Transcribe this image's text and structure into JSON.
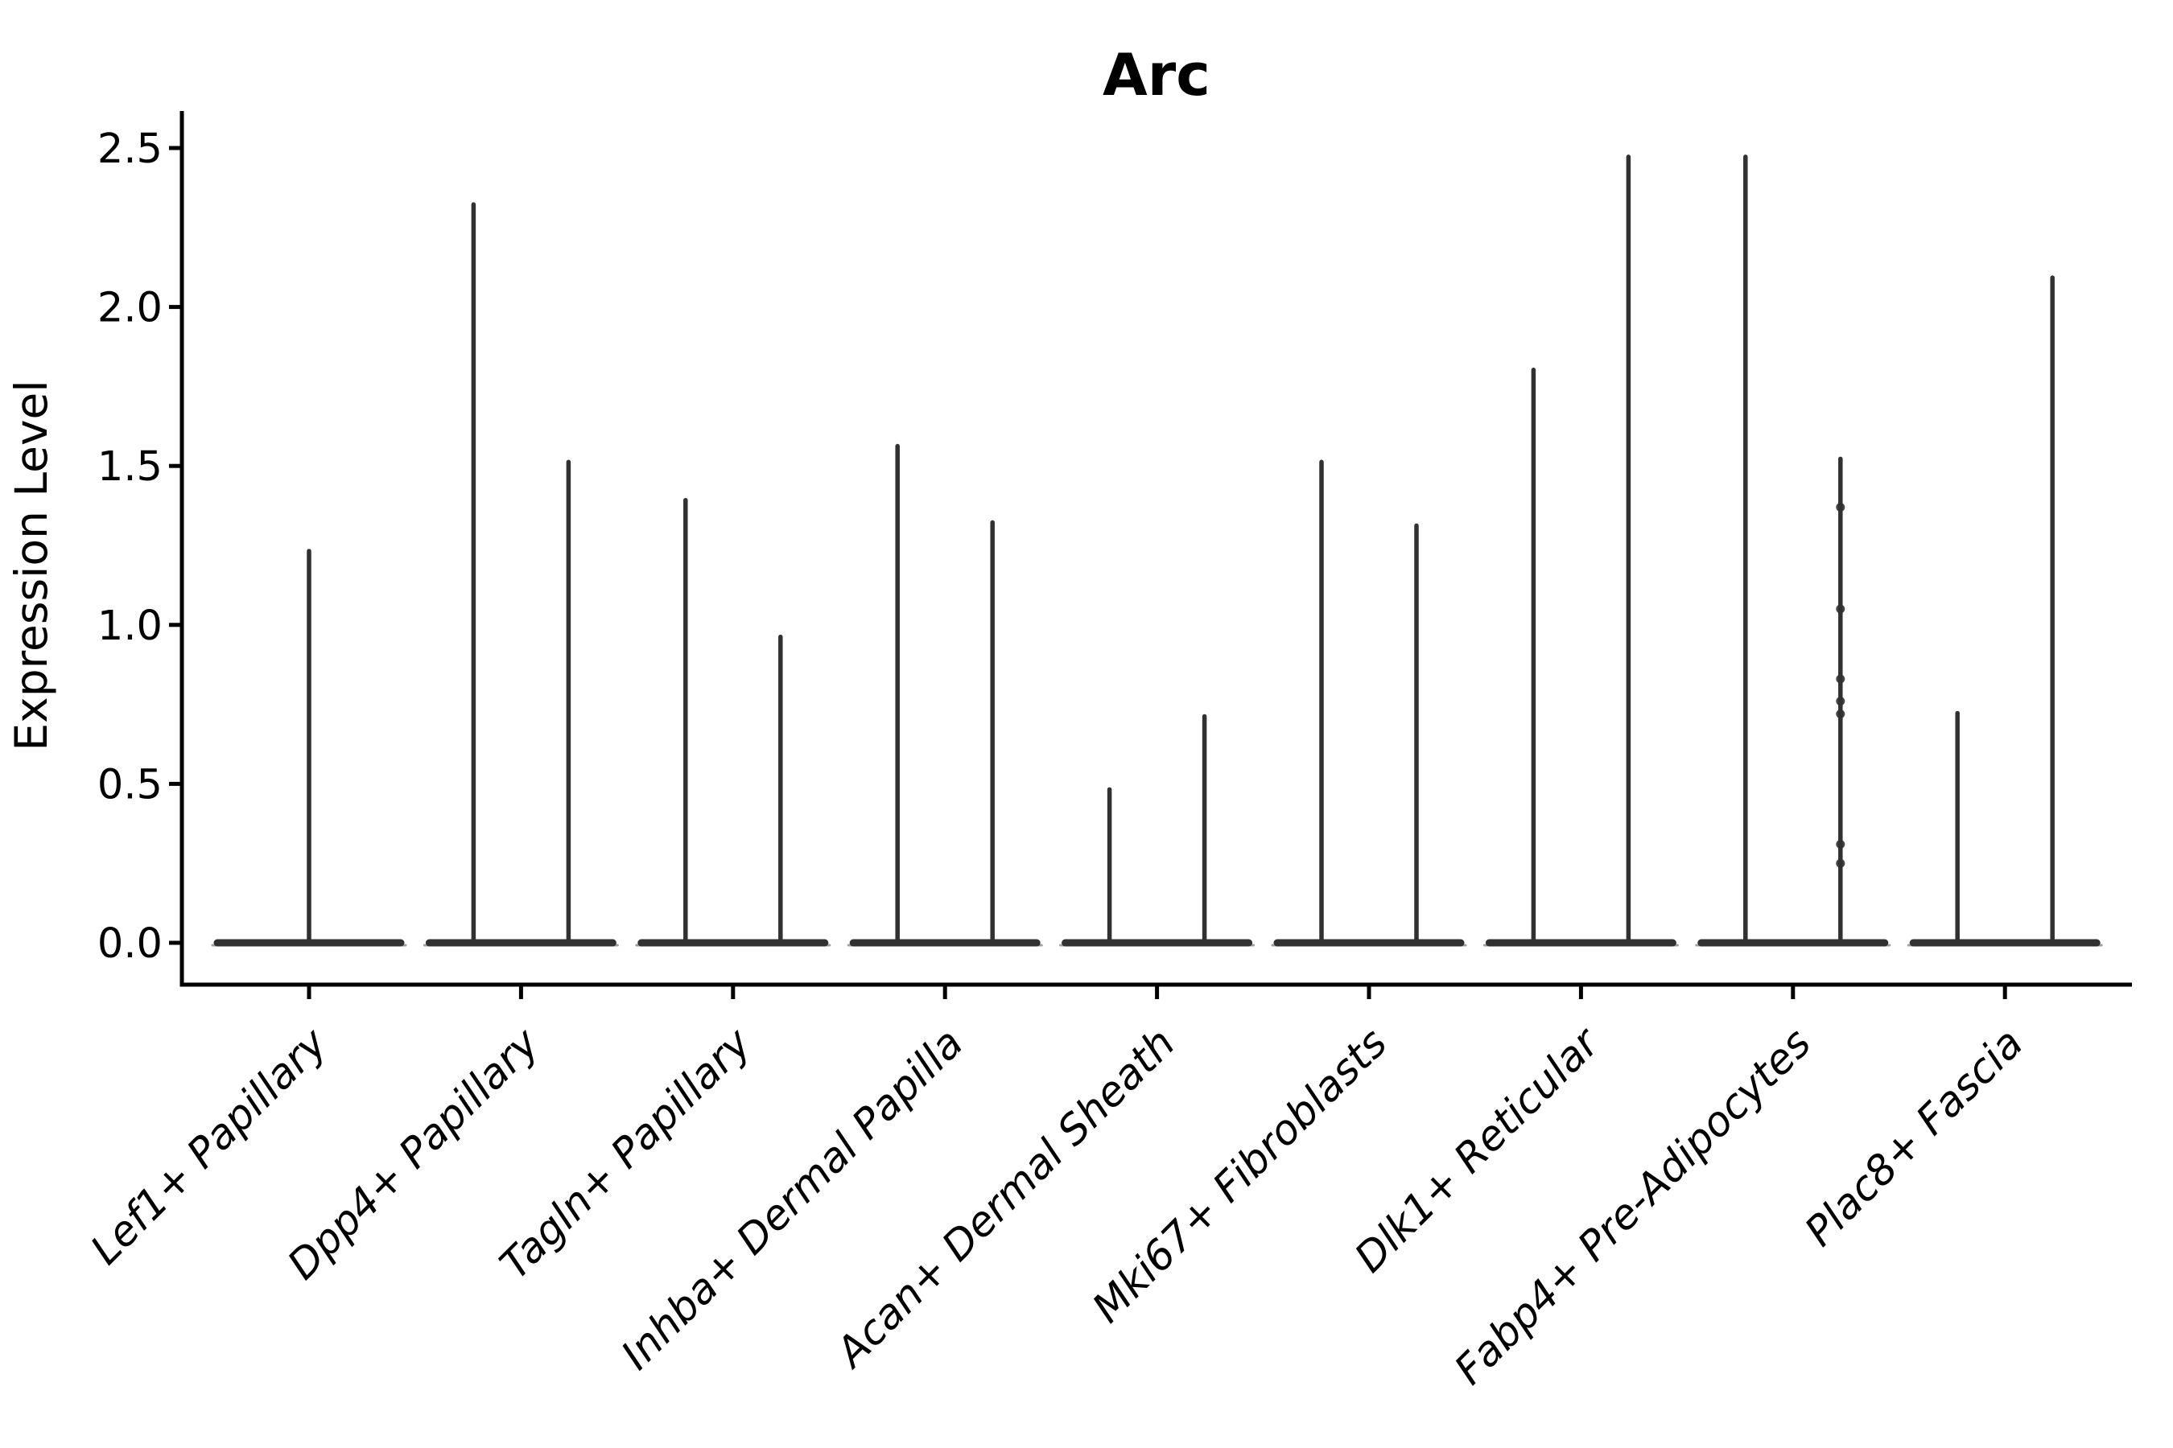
{
  "chart_data": {
    "type": "violin",
    "title": "Arc",
    "ylabel": "Expression Level",
    "xlabel": "",
    "yticks": [
      "0.0",
      "0.5",
      "1.0",
      "1.5",
      "2.0",
      "2.5"
    ],
    "ylim": [
      -0.13,
      2.6
    ],
    "grid": false,
    "legend": null,
    "categories": [
      "Lef1+ Papillary",
      "Dpp4+ Papillary",
      "Tagln+ Papillary",
      "Inhba+ Dermal Papilla",
      "Acan+ Dermal Sheath",
      "Mki67+ Fibroblasts",
      "Dlk1+ Reticular",
      "Fabp4+ Pre-Adipocytes",
      "Plac8+ Fascia"
    ],
    "series": [
      {
        "category": "Lef1+ Papillary",
        "violins": [
          {
            "offset": 0.0,
            "peak": 1.24,
            "width": 0.896
          }
        ]
      },
      {
        "category": "Dpp4+ Papillary",
        "violins": [
          {
            "offset": -0.224,
            "peak": 2.33,
            "width": 0.448
          },
          {
            "offset": 0.224,
            "peak": 1.52,
            "width": 0.448
          }
        ]
      },
      {
        "category": "Tagln+ Papillary",
        "violins": [
          {
            "offset": -0.224,
            "peak": 1.4,
            "width": 0.448
          },
          {
            "offset": 0.224,
            "peak": 0.97,
            "width": 0.448
          }
        ]
      },
      {
        "category": "Inhba+ Dermal Papilla",
        "violins": [
          {
            "offset": -0.224,
            "peak": 1.57,
            "width": 0.448
          },
          {
            "offset": 0.224,
            "peak": 1.33,
            "width": 0.448
          }
        ]
      },
      {
        "category": "Acan+ Dermal Sheath",
        "violins": [
          {
            "offset": -0.224,
            "peak": 0.49,
            "width": 0.448
          },
          {
            "offset": 0.224,
            "peak": 0.72,
            "width": 0.448
          }
        ]
      },
      {
        "category": "Mki67+ Fibroblasts",
        "violins": [
          {
            "offset": -0.224,
            "peak": 1.52,
            "width": 0.448
          },
          {
            "offset": 0.224,
            "peak": 1.32,
            "width": 0.448
          }
        ]
      },
      {
        "category": "Dlk1+ Reticular",
        "violins": [
          {
            "offset": -0.224,
            "peak": 1.81,
            "width": 0.448
          },
          {
            "offset": 0.224,
            "peak": 2.48,
            "width": 0.448
          }
        ]
      },
      {
        "category": "Fabp4+ Pre-Adipocytes",
        "violins": [
          {
            "offset": -0.224,
            "peak": 2.48,
            "width": 0.448
          },
          {
            "offset": 0.224,
            "peak": 1.53,
            "width": 0.448
          }
        ]
      },
      {
        "category": "Plac8+ Fascia",
        "violins": [
          {
            "offset": -0.224,
            "peak": 0.73,
            "width": 0.448
          },
          {
            "offset": 0.224,
            "peak": 2.1,
            "width": 0.448
          }
        ]
      }
    ],
    "jitter_points": [
      {
        "category": "Fabp4+ Pre-Adipocytes",
        "offset": 0.224,
        "values": [
          1.37,
          1.05,
          0.83,
          0.76,
          0.72,
          0.31,
          0.25
        ]
      }
    ],
    "colors": {
      "violin": "#313131",
      "violin_edge": "#a0a0a0",
      "axis": "#000000",
      "text": "#000000",
      "background": "#ffffff"
    }
  }
}
